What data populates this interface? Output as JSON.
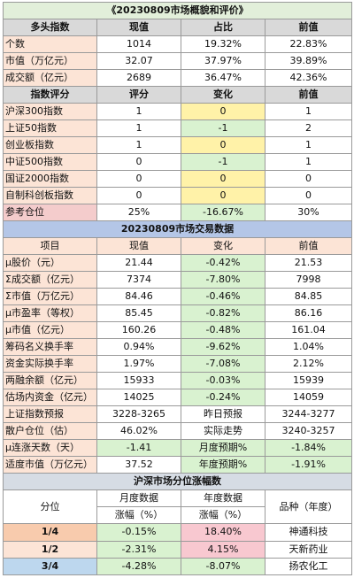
{
  "title": "《20230809市场概貌和评价》",
  "section1": {
    "header": [
      "多头指数",
      "现值",
      "占比",
      "前值"
    ],
    "rows": [
      [
        "个数",
        "1014",
        "19.32%",
        "22.83%"
      ],
      [
        "市值（万亿元）",
        "32.07",
        "37.97%",
        "39.89%"
      ],
      [
        "成交额（亿元）",
        "2689",
        "36.47%",
        "42.36%"
      ]
    ]
  },
  "section2": {
    "header": [
      "指数评分",
      "评分",
      "变化",
      "前值"
    ],
    "rows": [
      [
        "沪深300指数",
        "1",
        "0",
        "1"
      ],
      [
        "上证50指数",
        "1",
        "-1",
        "2"
      ],
      [
        "创业板指数",
        "1",
        "0",
        "1"
      ],
      [
        "中证500指数",
        "0",
        "-1",
        "1"
      ],
      [
        "国证2000指数",
        "0",
        "0",
        "0"
      ],
      [
        "自制科创板指数",
        "0",
        "0",
        "0"
      ],
      [
        "参考仓位",
        "25%",
        "-16.67%",
        "30%"
      ]
    ]
  },
  "section3": {
    "title": "20230809市场交易数据",
    "header": [
      "项目",
      "现值",
      "变化",
      "前值"
    ],
    "rows": [
      [
        "μ股价（元）",
        "21.44",
        "-0.42%",
        "21.53"
      ],
      [
        "Σ成交额（亿元）",
        "7374",
        "-7.80%",
        "7998"
      ],
      [
        "Σ市值（万亿元）",
        "84.46",
        "-0.46%",
        "84.85"
      ],
      [
        "μ市盈率（等权）",
        "85.45",
        "-0.82%",
        "86.16"
      ],
      [
        "μ市值（亿元）",
        "160.26",
        "-0.48%",
        "161.04"
      ],
      [
        "筹码名义换手率",
        "0.94%",
        "-9.62%",
        "1.04%"
      ],
      [
        "资金实际换手率",
        "1.97%",
        "-7.08%",
        "2.12%"
      ],
      [
        "两融余额（亿元）",
        "15933",
        "-0.03%",
        "15939"
      ],
      [
        "估场内资金（亿元）",
        "14025",
        "-0.24%",
        "14059"
      ],
      [
        "上证指数预报",
        "3228-3265",
        "昨日预报",
        "3244-3277"
      ],
      [
        "散户仓位（估）",
        "46.02%",
        "实际走势",
        "3240-3257"
      ],
      [
        "μ连涨天数（天）",
        "-1.41",
        "月度预期%",
        "-1.84%"
      ],
      [
        "适度市值（万亿元）",
        "37.52",
        "年度预期%",
        "-1.91%"
      ]
    ]
  },
  "section4": {
    "title": "沪深市场分位涨幅数",
    "header": {
      "quantile": "分位",
      "monthly": "月度数据",
      "monthly_unit": "涨幅（%）",
      "yearly": "年度数据",
      "yearly_unit": "涨幅（%）",
      "stock": "品种（年度）"
    },
    "rows": [
      [
        "1/4",
        "-0.15%",
        "18.40%",
        "神通科技"
      ],
      [
        "1/2",
        "-2.31%",
        "4.15%",
        "天新药业"
      ],
      [
        "3/4",
        "-4.28%",
        "-8.07%",
        "扬农化工"
      ]
    ]
  }
}
